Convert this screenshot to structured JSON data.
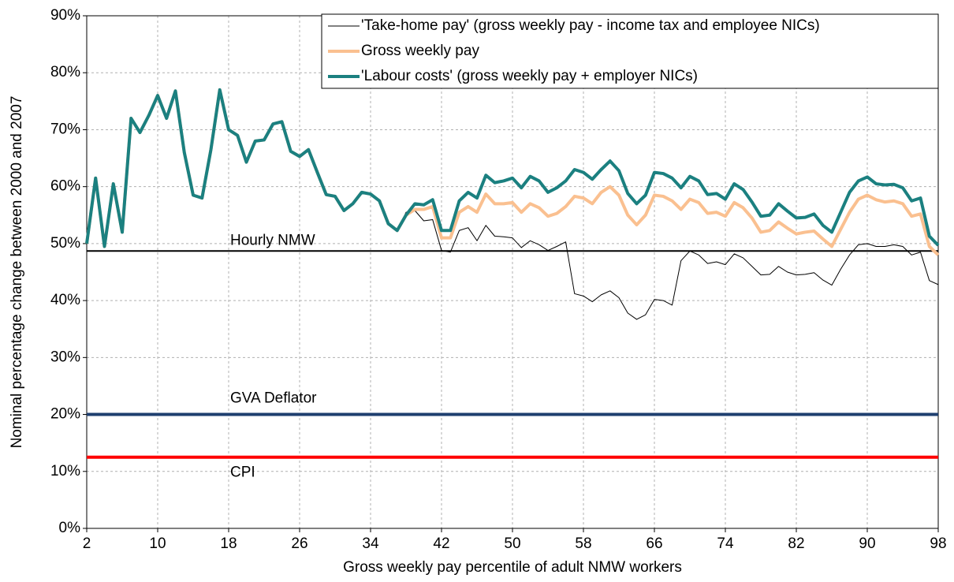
{
  "chart_data": {
    "type": "line",
    "y_label": "Nominal percentage change between 2000 and 2007",
    "x_label": "Gross weekly pay percentile of adult NMW workers",
    "x": [
      2,
      3,
      4,
      5,
      6,
      7,
      8,
      9,
      10,
      11,
      12,
      13,
      14,
      15,
      16,
      17,
      18,
      19,
      20,
      21,
      22,
      23,
      24,
      25,
      26,
      27,
      28,
      29,
      30,
      31,
      32,
      33,
      34,
      35,
      36,
      37,
      38,
      39,
      40,
      41,
      42,
      43,
      44,
      45,
      46,
      47,
      48,
      49,
      50,
      51,
      52,
      53,
      54,
      55,
      56,
      57,
      58,
      59,
      60,
      61,
      62,
      63,
      64,
      65,
      66,
      67,
      68,
      69,
      70,
      71,
      72,
      73,
      74,
      75,
      76,
      77,
      78,
      79,
      80,
      81,
      82,
      83,
      84,
      85,
      86,
      87,
      88,
      89,
      90,
      91,
      92,
      93,
      94,
      95,
      96,
      97,
      98
    ],
    "series": [
      {
        "name": "'Take-home pay' (gross weekly pay - income tax and employee NICs)",
        "color": "#000000",
        "width": 1,
        "values": [
          50,
          61.5,
          49.5,
          60.5,
          52,
          72,
          69.5,
          72.5,
          76,
          72,
          76.8,
          66,
          58.5,
          58,
          66.5,
          77,
          70,
          69,
          64.3,
          68,
          68.2,
          71,
          71.4,
          66.2,
          65.3,
          66.5,
          62.5,
          58.6,
          58.3,
          55.8,
          57,
          59,
          58.7,
          57.5,
          53.5,
          52.3,
          55.5,
          55.8,
          54,
          54.2,
          48.8,
          48.5,
          52.3,
          52.8,
          50.5,
          53.2,
          51.3,
          51.2,
          51,
          49.3,
          50.5,
          49.8,
          48.8,
          49.5,
          50.3,
          41.2,
          40.8,
          39.8,
          41,
          41.7,
          40.5,
          37.8,
          36.7,
          37.5,
          40.2,
          40,
          39.2,
          47,
          48.7,
          48,
          46.5,
          46.8,
          46.3,
          48.2,
          47.5,
          46,
          44.5,
          44.6,
          46,
          45,
          44.5,
          44.6,
          44.9,
          43.6,
          42.7,
          45.5,
          48,
          49.8,
          50,
          49.5,
          49.5,
          49.8,
          49.5,
          48,
          48.5,
          43.5,
          42.8
        ]
      },
      {
        "name": "Gross weekly pay",
        "color": "#fac090",
        "width": 4,
        "values": [
          50,
          61.5,
          49.5,
          60.5,
          52,
          72,
          69.5,
          72.5,
          76,
          72,
          76.8,
          66,
          58.5,
          58,
          66.5,
          77,
          70,
          69,
          64.3,
          68,
          68.2,
          71,
          71.4,
          66.2,
          65.3,
          66.5,
          62.5,
          58.6,
          58.3,
          55.8,
          57,
          59,
          58.7,
          57.5,
          53.5,
          52.3,
          55,
          56,
          56,
          56.5,
          51,
          51,
          55.5,
          56.5,
          55.5,
          58.7,
          57,
          57,
          57.2,
          55.5,
          57,
          56.3,
          54.8,
          55.3,
          56.5,
          58.3,
          58,
          57,
          59,
          60,
          58.5,
          55,
          53.3,
          55,
          58.5,
          58.3,
          57.5,
          56,
          57.8,
          57.2,
          55.3,
          55.5,
          54.8,
          57.2,
          56.3,
          54.5,
          52,
          52.3,
          53.8,
          52.7,
          51.7,
          52,
          52.2,
          50.8,
          49.5,
          52.5,
          55.5,
          57.8,
          58.5,
          57.7,
          57.3,
          57.5,
          57,
          54.8,
          55.2,
          49.5,
          48
        ]
      },
      {
        "name": "'Labour costs' (gross weekly pay + employer NICs)",
        "color": "#1b8080",
        "width": 4,
        "values": [
          50,
          61.5,
          49.5,
          60.5,
          52,
          72,
          69.5,
          72.5,
          76,
          72,
          76.8,
          66,
          58.5,
          58,
          66.5,
          77,
          70,
          69,
          64.3,
          68,
          68.2,
          71,
          71.4,
          66.2,
          65.3,
          66.5,
          62.5,
          58.6,
          58.3,
          55.8,
          57,
          59,
          58.7,
          57.5,
          53.5,
          52.3,
          55,
          57,
          56.8,
          57.7,
          52.3,
          52.3,
          57.5,
          59,
          58,
          62,
          60.7,
          61,
          61.5,
          59.8,
          61.8,
          61,
          59,
          59.8,
          61,
          63,
          62.5,
          61.3,
          63,
          64.5,
          62.8,
          58.8,
          57,
          58.5,
          62.5,
          62.3,
          61.5,
          59.8,
          61.8,
          61,
          58.6,
          58.8,
          57.8,
          60.5,
          59.5,
          57.3,
          54.8,
          55,
          57,
          55.7,
          54.5,
          54.6,
          55.2,
          53.2,
          52,
          55.5,
          59,
          61,
          61.7,
          60.5,
          60.3,
          60.4,
          59.8,
          57.5,
          58,
          51.3,
          49.7
        ]
      }
    ],
    "reference_lines": [
      {
        "name": "Hourly NMW",
        "value": 48.7,
        "color": "#000000"
      },
      {
        "name": "GVA Deflator",
        "value": 20,
        "color": "#1f3f6f"
      },
      {
        "name": "CPI",
        "value": 12.5,
        "color": "#ff0000"
      }
    ],
    "xlim": [
      2,
      98
    ],
    "xticks": [
      2,
      10,
      18,
      26,
      34,
      42,
      50,
      58,
      66,
      74,
      82,
      90,
      98
    ],
    "ylim": [
      0,
      90
    ],
    "yticks": [
      {
        "value": 0,
        "label": "0%"
      },
      {
        "value": 10,
        "label": "10%"
      },
      {
        "value": 20,
        "label": "20%"
      },
      {
        "value": 30,
        "label": "30%"
      },
      {
        "value": 40,
        "label": "40%"
      },
      {
        "value": 50,
        "label": "50%"
      },
      {
        "value": 60,
        "label": "60%"
      },
      {
        "value": 70,
        "label": "70%"
      },
      {
        "value": 80,
        "label": "80%"
      },
      {
        "value": 90,
        "label": "90%"
      }
    ],
    "grid": true
  }
}
